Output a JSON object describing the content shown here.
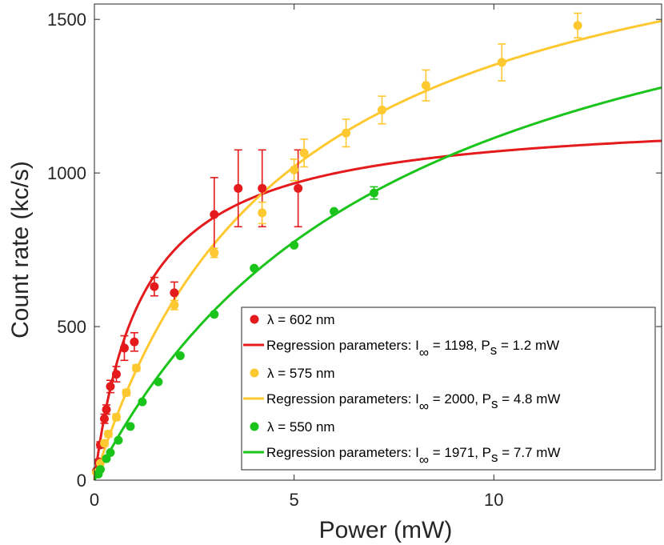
{
  "chart_data": {
    "type": "scatter",
    "xlabel": "Power (mW)",
    "ylabel": "Count rate (kc/s)",
    "xlim": [
      0,
      14.2
    ],
    "ylim": [
      0,
      1550
    ],
    "xticks": [
      0,
      5,
      10
    ],
    "yticks": [
      0,
      500,
      1000,
      1500
    ],
    "grid": false,
    "legend_position": "bottom-right",
    "series": [
      {
        "name": "λ = 602 nm",
        "color": "#e41a1c",
        "points": [
          {
            "x": 0.05,
            "y": 30,
            "err": 0
          },
          {
            "x": 0.1,
            "y": 60,
            "err": 0
          },
          {
            "x": 0.15,
            "y": 115,
            "err": 10
          },
          {
            "x": 0.25,
            "y": 200,
            "err": 15
          },
          {
            "x": 0.3,
            "y": 230,
            "err": 15
          },
          {
            "x": 0.4,
            "y": 305,
            "err": 20
          },
          {
            "x": 0.55,
            "y": 345,
            "err": 25
          },
          {
            "x": 0.75,
            "y": 430,
            "err": 40
          },
          {
            "x": 1.0,
            "y": 450,
            "err": 30
          },
          {
            "x": 1.5,
            "y": 630,
            "err": 30
          },
          {
            "x": 2.0,
            "y": 610,
            "err": 35
          },
          {
            "x": 3.0,
            "y": 865,
            "err": 120
          },
          {
            "x": 3.6,
            "y": 950,
            "err": 125
          },
          {
            "x": 4.2,
            "y": 950,
            "err": 125
          },
          {
            "x": 5.1,
            "y": 950,
            "err": 125
          }
        ],
        "fit": {
          "I_inf": 1198,
          "P_s": 1.2,
          "label": "Regression parameters: I∞ = 1198, P s = 1.2 mW"
        }
      },
      {
        "name": "λ = 575 nm",
        "color": "#fdc830",
        "points": [
          {
            "x": 0.05,
            "y": 25,
            "err": 0
          },
          {
            "x": 0.15,
            "y": 55,
            "err": 5
          },
          {
            "x": 0.25,
            "y": 120,
            "err": 10
          },
          {
            "x": 0.35,
            "y": 150,
            "err": 10
          },
          {
            "x": 0.55,
            "y": 205,
            "err": 10
          },
          {
            "x": 0.8,
            "y": 285,
            "err": 10
          },
          {
            "x": 1.05,
            "y": 365,
            "err": 10
          },
          {
            "x": 2.0,
            "y": 570,
            "err": 15
          },
          {
            "x": 3.0,
            "y": 740,
            "err": 15
          },
          {
            "x": 4.2,
            "y": 870,
            "err": 35
          },
          {
            "x": 5.0,
            "y": 1010,
            "err": 35
          },
          {
            "x": 5.25,
            "y": 1065,
            "err": 45
          },
          {
            "x": 6.3,
            "y": 1130,
            "err": 45
          },
          {
            "x": 7.2,
            "y": 1205,
            "err": 45
          },
          {
            "x": 8.3,
            "y": 1285,
            "err": 50
          },
          {
            "x": 10.2,
            "y": 1360,
            "err": 60
          },
          {
            "x": 12.1,
            "y": 1480,
            "err": 40
          }
        ],
        "fit": {
          "I_inf": 2000,
          "P_s": 4.8,
          "label": "Regression parameters: I∞ = 2000, P s = 4.8 mW"
        }
      },
      {
        "name": "λ = 550 nm",
        "color": "#1ac41a",
        "points": [
          {
            "x": 0.1,
            "y": 20,
            "err": 0
          },
          {
            "x": 0.15,
            "y": 35,
            "err": 0
          },
          {
            "x": 0.3,
            "y": 70,
            "err": 0
          },
          {
            "x": 0.4,
            "y": 90,
            "err": 0
          },
          {
            "x": 0.6,
            "y": 130,
            "err": 0
          },
          {
            "x": 0.9,
            "y": 175,
            "err": 0
          },
          {
            "x": 1.2,
            "y": 255,
            "err": 0
          },
          {
            "x": 1.6,
            "y": 320,
            "err": 0
          },
          {
            "x": 2.15,
            "y": 405,
            "err": 0
          },
          {
            "x": 3.0,
            "y": 540,
            "err": 0
          },
          {
            "x": 4.0,
            "y": 690,
            "err": 0
          },
          {
            "x": 5.0,
            "y": 765,
            "err": 0
          },
          {
            "x": 6.0,
            "y": 875,
            "err": 0
          },
          {
            "x": 7.0,
            "y": 935,
            "err": 20
          }
        ],
        "fit": {
          "I_inf": 1971,
          "P_s": 7.7,
          "label": "Regression parameters: I∞ = 1971, P s = 7.7 mW"
        }
      }
    ]
  },
  "legend": {
    "entries": [
      {
        "kind": "marker",
        "color": "#e41a1c",
        "text": "λ = 602 nm"
      },
      {
        "kind": "line",
        "color": "#e41a1c",
        "prefix": "Regression parameters: I",
        "sub": "∞",
        "mid": " = 1198, P",
        "sub2": "s",
        "suffix": " = 1.2 mW"
      },
      {
        "kind": "marker",
        "color": "#fdc830",
        "text": "λ = 575 nm"
      },
      {
        "kind": "line",
        "color": "#fdc830",
        "prefix": "Regression parameters: I",
        "sub": "∞",
        "mid": " = 2000, P",
        "sub2": "s",
        "suffix": " = 4.8 mW"
      },
      {
        "kind": "marker",
        "color": "#1ac41a",
        "text": "λ = 550 nm"
      },
      {
        "kind": "line",
        "color": "#1ac41a",
        "prefix": "Regression parameters: I",
        "sub": "∞",
        "mid": " = 1971, P",
        "sub2": "s",
        "suffix": " = 7.7 mW"
      }
    ]
  }
}
